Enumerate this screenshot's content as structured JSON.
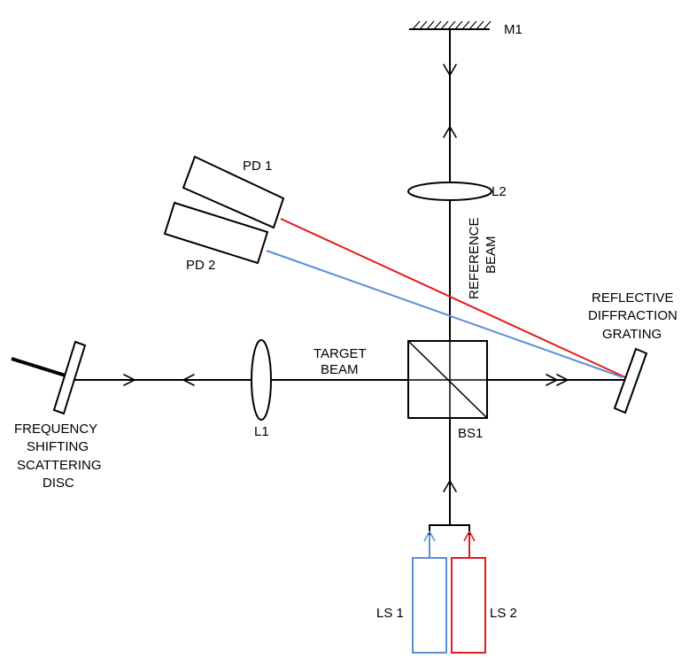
{
  "labels": {
    "m1": "M1",
    "l2": "L2",
    "reference_beam_line1": "REFERENCE",
    "reference_beam_line2": "BEAM",
    "pd1": "PD 1",
    "pd2": "PD 2",
    "reflective_grating_line1": "REFLECTIVE",
    "reflective_grating_line2": "DIFFRACTION",
    "reflective_grating_line3": "GRATING",
    "target_beam_line1": "TARGET",
    "target_beam_line2": "BEAM",
    "l1": "L1",
    "bs1": "BS1",
    "disc_line1": "FREQUENCY",
    "disc_line2": "SHIFTING",
    "disc_line3": "SCATTERING",
    "disc_line4": "DISC",
    "ls1": "LS 1",
    "ls2": "LS 2"
  },
  "colors": {
    "black": "#000000",
    "red_beam": "#e31a1c",
    "blue_beam": "#5b8fd6"
  }
}
